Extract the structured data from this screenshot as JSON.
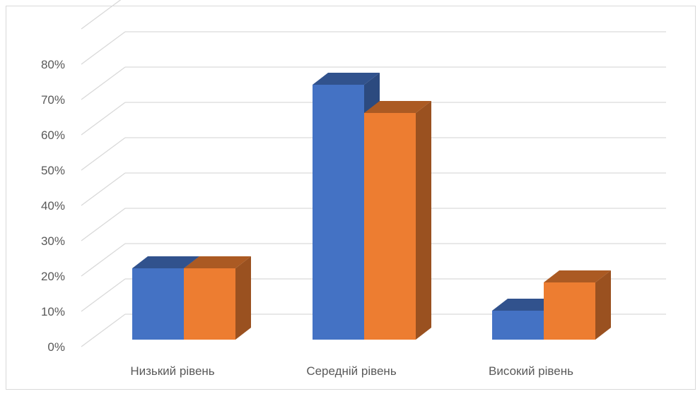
{
  "chart_data": {
    "type": "bar",
    "style": "3d-clustered-column",
    "categories": [
      "Низький рівень",
      "Середній рівень",
      "Високий рівень"
    ],
    "series": [
      {
        "values": [
          0.2,
          0.72,
          0.08
        ],
        "color": "#4472c4"
      },
      {
        "values": [
          0.2,
          0.64,
          0.16
        ],
        "color": "#ed7d31"
      }
    ],
    "y_ticks": [
      "0%",
      "10%",
      "20%",
      "30%",
      "40%",
      "50%",
      "60%",
      "70%",
      "80%"
    ],
    "ylim": [
      0,
      0.8
    ],
    "grid": true,
    "legend": "none",
    "title": "",
    "xlabel": "",
    "ylabel": ""
  }
}
